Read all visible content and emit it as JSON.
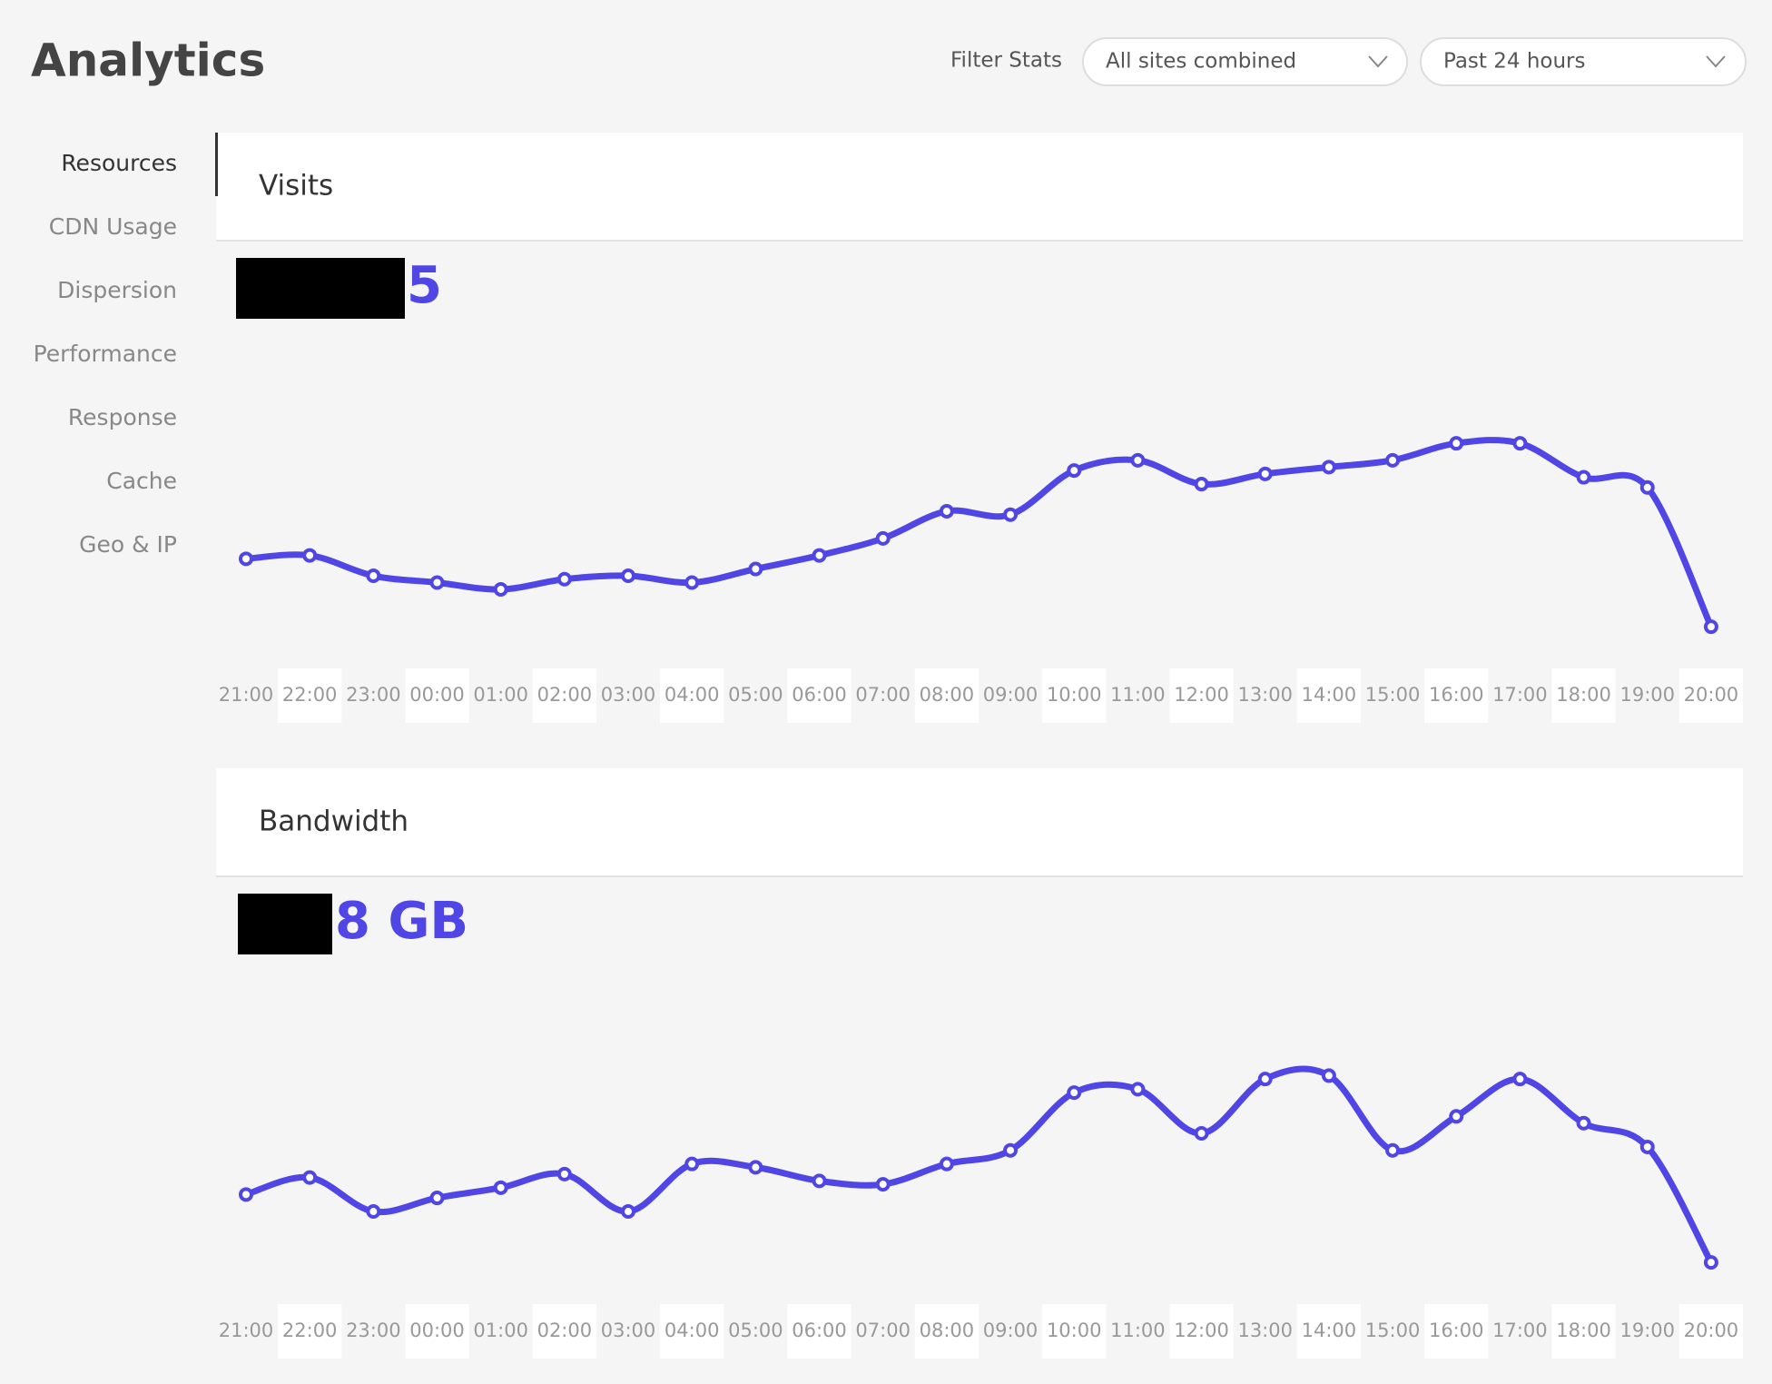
{
  "header": {
    "title": "Analytics",
    "filter_label": "Filter Stats",
    "site_filter": "All sites combined",
    "time_filter": "Past 24 hours"
  },
  "nav": [
    "Resources",
    "CDN Usage",
    "Dispersion",
    "Performance",
    "Response",
    "Cache",
    "Geo & IP"
  ],
  "chart_data": [
    {
      "type": "line",
      "title": "Visits",
      "total": "5",
      "color": "#4f46e5",
      "ylim": [
        0,
        100
      ],
      "categories": [
        "21:00",
        "22:00",
        "23:00",
        "00:00",
        "01:00",
        "02:00",
        "03:00",
        "04:00",
        "05:00",
        "06:00",
        "07:00",
        "08:00",
        "09:00",
        "10:00",
        "11:00",
        "12:00",
        "13:00",
        "14:00",
        "15:00",
        "16:00",
        "17:00",
        "18:00",
        "19:00",
        "20:00"
      ],
      "values": [
        32,
        33,
        27,
        25,
        23,
        26,
        27,
        25,
        29,
        33,
        38,
        46,
        45,
        58,
        61,
        54,
        57,
        59,
        61,
        66,
        66,
        56,
        53,
        12
      ]
    },
    {
      "type": "line",
      "title": "Bandwidth",
      "total": "8 GB",
      "color": "#4f46e5",
      "ylim": [
        0,
        100
      ],
      "categories": [
        "21:00",
        "22:00",
        "23:00",
        "00:00",
        "01:00",
        "02:00",
        "03:00",
        "04:00",
        "05:00",
        "06:00",
        "07:00",
        "08:00",
        "09:00",
        "10:00",
        "11:00",
        "12:00",
        "13:00",
        "14:00",
        "15:00",
        "16:00",
        "17:00",
        "18:00",
        "19:00",
        "20:00"
      ],
      "values": [
        32,
        37,
        27,
        31,
        34,
        38,
        27,
        41,
        40,
        36,
        35,
        41,
        45,
        62,
        63,
        50,
        66,
        67,
        45,
        55,
        66,
        53,
        46,
        12
      ]
    }
  ]
}
